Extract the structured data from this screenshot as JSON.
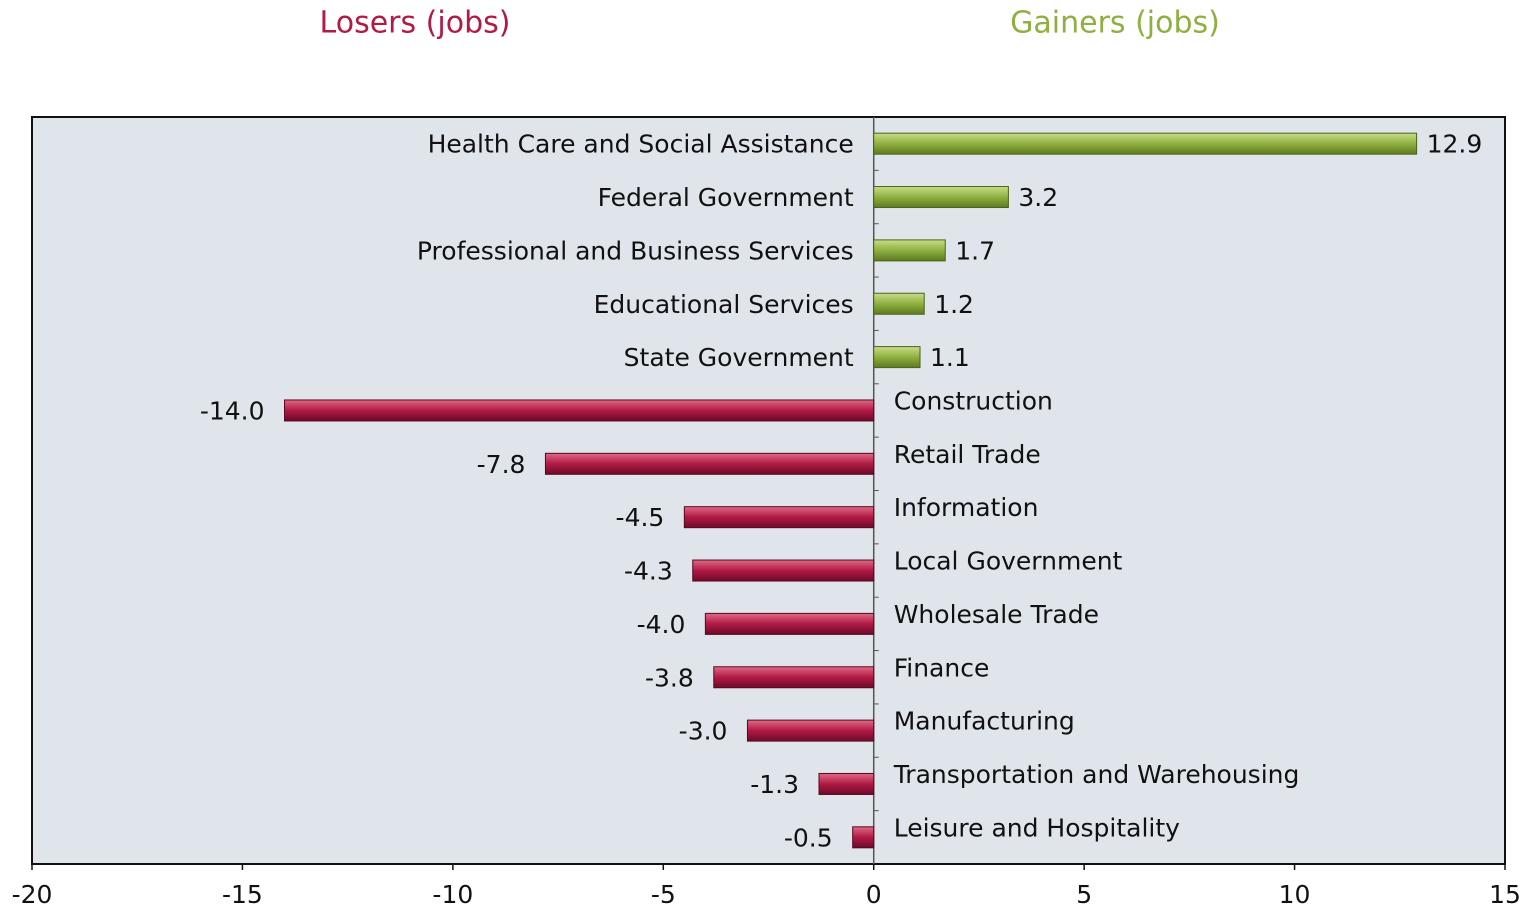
{
  "chart_data": {
    "type": "bar",
    "orientation": "horizontal",
    "labels": {
      "negative": "Losers (jobs)",
      "positive": "Gainers (jobs)"
    },
    "categories": [
      "Health Care and Social Assistance",
      "Federal Government",
      "Professional and Business Services",
      "Educational Services",
      "State Government",
      "Construction",
      "Retail Trade",
      "Information",
      "Local Government",
      "Wholesale Trade",
      "Finance",
      "Manufacturing",
      "Transportation and Warehousing",
      "Leisure and Hospitality"
    ],
    "values": [
      12.9,
      3.2,
      1.7,
      1.2,
      1.1,
      -14.0,
      -7.8,
      -4.5,
      -4.3,
      -4.0,
      -3.8,
      -3.0,
      -1.3,
      -0.5
    ],
    "value_labels": [
      "12.9",
      "3.2",
      "1.7",
      "1.2",
      "1.1",
      "-14.0",
      "-7.8",
      "-4.5",
      "-4.3",
      "-4.0",
      "-3.8",
      "-3.0",
      "-1.3",
      "-0.5"
    ],
    "positive_color": "#8fb040",
    "negative_color": "#b01a45",
    "xlim": [
      -20,
      15
    ],
    "xticks": [
      -20,
      -15,
      -10,
      -5,
      0,
      5,
      10,
      15
    ]
  }
}
